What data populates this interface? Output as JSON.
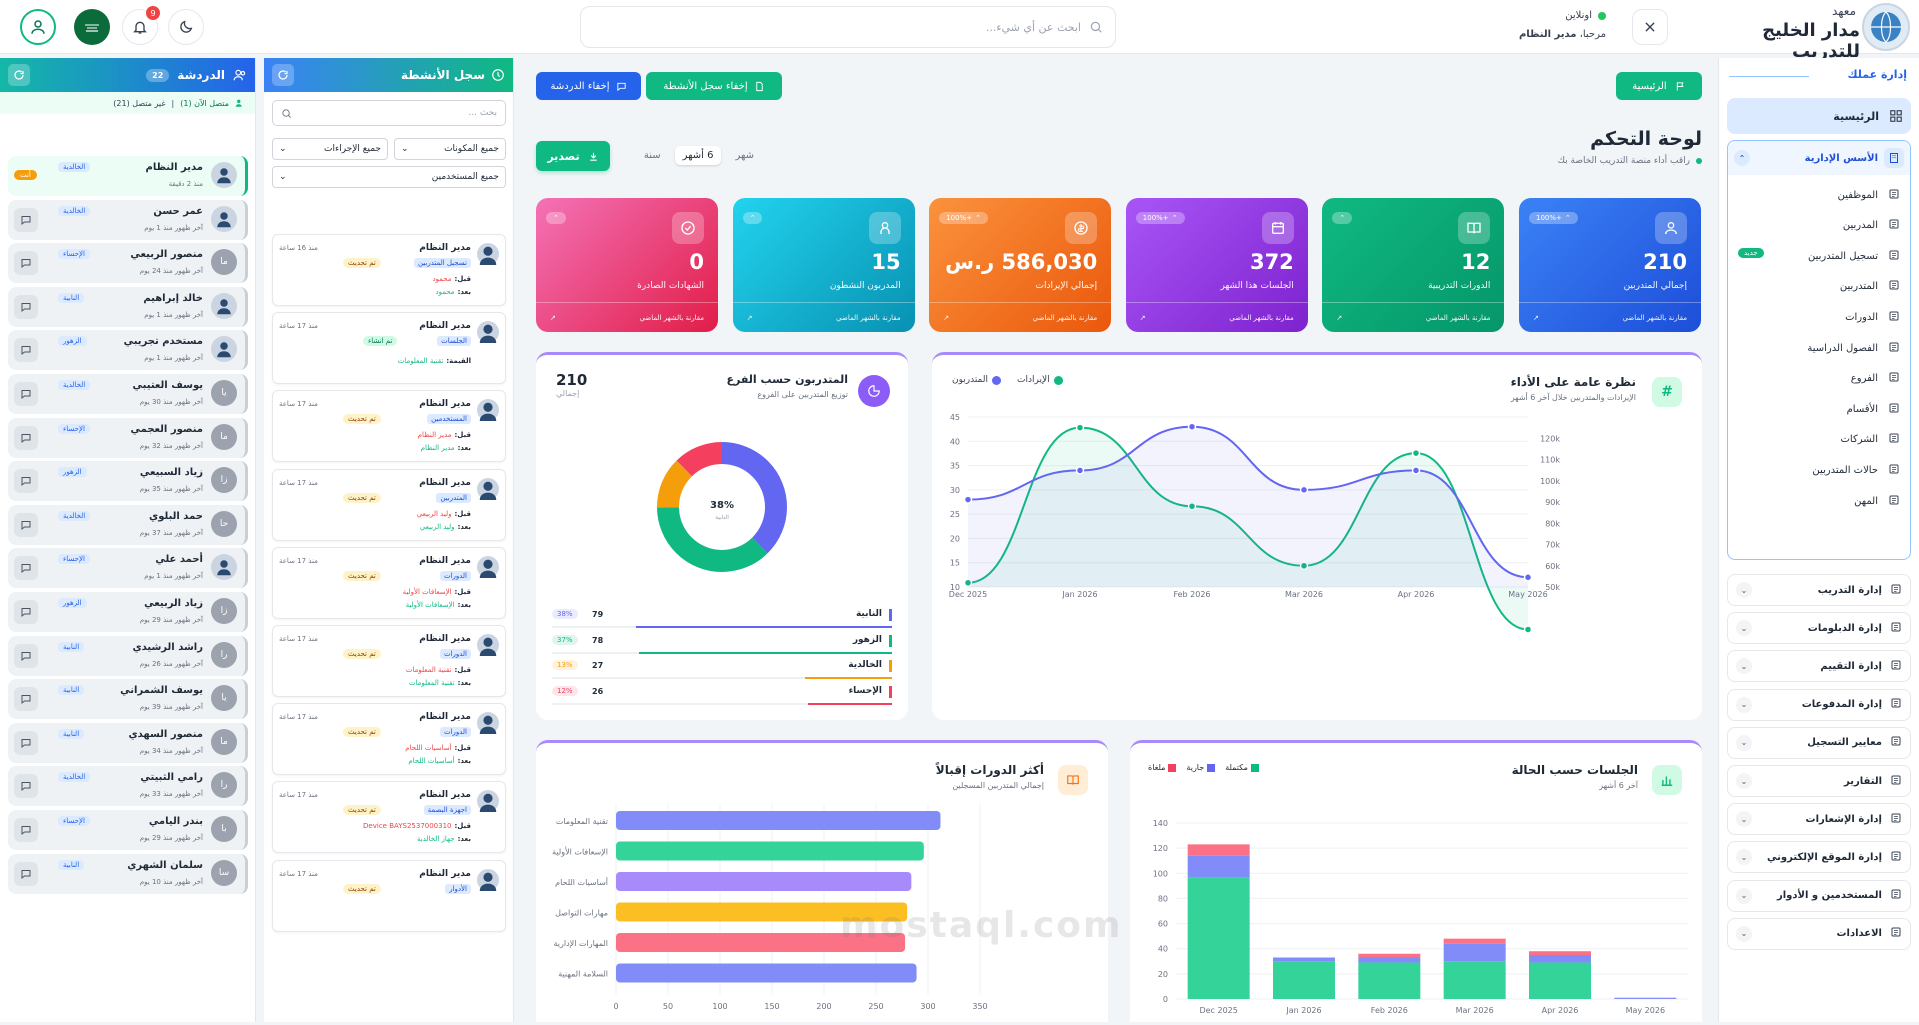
{
  "topbar": {
    "brand_line1": "معهد",
    "brand_line2": "مدار الخليج للتدريب",
    "status": "اونلاين",
    "greeting_prefix": "مرحبا،",
    "greeting_user": "مدير النظام",
    "search_placeholder": "ابحث عن أي شيء...",
    "notifications_count": "9"
  },
  "chat_panel": {
    "title": "الدردشة",
    "count": "22",
    "online": "متصل الآن (1)",
    "offline": "غير متصل (21)",
    "users": [
      {
        "name": "مدير النظام",
        "branch": "الخالدية",
        "time": "منذ 2 دقيقة",
        "initials": "",
        "tag": "أنت"
      },
      {
        "name": "عمر حسن",
        "branch": "الخالدية",
        "time": "آخر ظهور منذ 1 يوم",
        "initials": ""
      },
      {
        "name": "منصور الربيعي",
        "branch": "الإحساء",
        "time": "آخر ظهور منذ 24 يوم",
        "initials": "ما"
      },
      {
        "name": "خالد إبراهيم",
        "branch": "النابية",
        "time": "آخر ظهور منذ 1 يوم",
        "initials": ""
      },
      {
        "name": "مستخدم تجريبي",
        "branch": "الزهور",
        "time": "آخر ظهور منذ 1 يوم",
        "initials": ""
      },
      {
        "name": "يوسف العتيبي",
        "branch": "الخالدية",
        "time": "آخر ظهور منذ 30 يوم",
        "initials": "يا"
      },
      {
        "name": "منصور العجمي",
        "branch": "الإحساء",
        "time": "آخر ظهور منذ 32 يوم",
        "initials": "ما"
      },
      {
        "name": "زياد السبيعي",
        "branch": "الزهور",
        "time": "آخر ظهور منذ 35 يوم",
        "initials": "زا"
      },
      {
        "name": "حمد البلوي",
        "branch": "الخالدية",
        "time": "آخر ظهور منذ 37 يوم",
        "initials": "حا"
      },
      {
        "name": "أحمد علي",
        "branch": "الإحساء",
        "time": "آخر ظهور منذ 1 يوم",
        "initials": ""
      },
      {
        "name": "زياد الربيعي",
        "branch": "الزهور",
        "time": "آخر ظهور منذ 29 يوم",
        "initials": "زا"
      },
      {
        "name": "راشد الرشيدي",
        "branch": "النابية",
        "time": "آخر ظهور منذ 26 يوم",
        "initials": "را"
      },
      {
        "name": "يوسف الشمراني",
        "branch": "النابية",
        "time": "آخر ظهور منذ 39 يوم",
        "initials": "يا"
      },
      {
        "name": "منصور السهدي",
        "branch": "النابية",
        "time": "آخر ظهور منذ 34 يوم",
        "initials": "ما"
      },
      {
        "name": "رامي الثبيتي",
        "branch": "الخالدية",
        "time": "آخر ظهور منذ 33 يوم",
        "initials": "را"
      },
      {
        "name": "بندر اليامي",
        "branch": "الإحساء",
        "time": "آخر ظهور منذ 29 يوم",
        "initials": "با"
      },
      {
        "name": "سلمان الشهري",
        "branch": "النابية",
        "time": "آخر ظهور منذ 10 يوم",
        "initials": "سا"
      }
    ]
  },
  "activity_panel": {
    "title": "سجل الأنشطة",
    "search_placeholder": "بحث ...",
    "filter_components": "جميع المكونات",
    "filter_actions": "جميع الإجراءات",
    "filter_users": "جميع المستخدمين",
    "before_label": "قبل:",
    "after_label": "بعد:",
    "value_label": "القيمة:",
    "entries": [
      {
        "user": "مدير النظام",
        "time": "منذ 16 ساعة",
        "module": "تسجيل المتدربين",
        "action": "تم تحديث",
        "before": "محمود",
        "after": "محمود"
      },
      {
        "user": "مدير النظام",
        "time": "منذ 17 ساعة",
        "module": "الجلسات",
        "action": "تم انشاء",
        "value": "تقنية المعلومات"
      },
      {
        "user": "مدير النظام",
        "time": "منذ 17 ساعة",
        "module": "المستخدمين",
        "action": "تم تحديث",
        "before": "مدير النظام",
        "after": "مدير النظام"
      },
      {
        "user": "مدير النظام",
        "time": "منذ 17 ساعة",
        "module": "المتدربين",
        "action": "تم تحديث",
        "before": "وليد الربيعي",
        "after": "وليد الربيعي"
      },
      {
        "user": "مدير النظام",
        "time": "منذ 17 ساعة",
        "module": "الدورات",
        "action": "تم تحديث",
        "before": "الإسعافات الأولية",
        "after": "الإسعافات الأولية"
      },
      {
        "user": "مدير النظام",
        "time": "منذ 17 ساعة",
        "module": "الدورات",
        "action": "تم تحديث",
        "before": "تقنية المعلومات",
        "after": "تقنية المعلومات"
      },
      {
        "user": "مدير النظام",
        "time": "منذ 17 ساعة",
        "module": "الدورات",
        "action": "تم تحديث",
        "before": "أساسيات اللحام",
        "after": "أساسيات اللحام"
      },
      {
        "user": "مدير النظام",
        "time": "منذ 17 ساعة",
        "module": "اجهزة البصمة",
        "action": "تم تحديث",
        "before": "Device BAYS2537000310",
        "after": "جهاز الخالدية"
      },
      {
        "user": "مدير النظام",
        "time": "منذ 17 ساعة",
        "module": "الأدوار",
        "action": "تم تحديث"
      }
    ]
  },
  "main": {
    "hide_chat": "إخفاء الدردشة",
    "hide_activity": "إخفاء سجل الأنشطة",
    "home_button": "الرئيسية",
    "page_title": "لوحة التحكم",
    "page_subtitle": "راقب أداء منصة التدريب الخاصة بك",
    "export": "تصدير",
    "periods": [
      "شهر",
      "6 أشهر",
      "سنة"
    ],
    "kpis": [
      {
        "value": "210",
        "label": "إجمالي المتدربين",
        "badge": "100%+",
        "foot": "مقارنة بالشهر الماضي",
        "color": "#2563eb"
      },
      {
        "value": "12",
        "label": "الدورات التدريبية",
        "badge": "",
        "foot": "مقارنة بالشهر الماضي",
        "color": "#10b981"
      },
      {
        "value": "372",
        "label": "الجلسات هذا الشهر",
        "badge": "100%+",
        "foot": "مقارنة بالشهر الماضي",
        "color": "#9333ea"
      },
      {
        "value": "586,030 ر.س",
        "label": "إجمالي الإيرادات",
        "badge": "100%+",
        "foot": "مقارنة بالشهر الماضي",
        "color": "#f97316"
      },
      {
        "value": "15",
        "label": "المدربون النشطون",
        "badge": "",
        "foot": "مقارنة بالشهر الماضي",
        "color": "#06b6d4"
      },
      {
        "value": "0",
        "label": "الشهادات الصادرة",
        "badge": "",
        "foot": "مقارنة بالشهر الماضي",
        "color": "#ec4899"
      }
    ],
    "watermark": "mostaql.com"
  },
  "sidebar": {
    "section_title": "إدارة عملك",
    "home": "الرئيسية",
    "basics_title": "الأسس الإدارية",
    "new_badge": "جديد",
    "basics_items": [
      "الموظفين",
      "المدربين",
      "تسجيل المتدربين",
      "المتدربين",
      "الدورات",
      "الفصول الدراسية",
      "الفروع",
      "الأقسام",
      "الشركات",
      "حالات المتدربين",
      "المهن"
    ],
    "groups": [
      "إدارة التدريب",
      "إدارة الدبلومات",
      "إدارة التقييم",
      "إدارة المدفوعات",
      "معايير التسجيل",
      "التقارير",
      "إدارة الإشعارات",
      "إدارة الموقع الإلكتروني",
      "المستخدمين و الأدوار",
      "الاعدادات"
    ]
  },
  "chart_data": [
    {
      "type": "line",
      "title": "نظرة عامة على الأداء",
      "subtitle": "الإيرادات والمتدربين خلال آخر 6 أشهر",
      "x": [
        "Dec 2025",
        "Jan 2026",
        "Feb 2026",
        "Mar 2026",
        "Apr 2026",
        "May 2026"
      ],
      "series": [
        {
          "name": "الإيرادات",
          "axis": "right",
          "values": [
            42000,
            115000,
            78000,
            50000,
            103000,
            20000
          ],
          "color": "#10b981"
        },
        {
          "name": "المتدربون",
          "axis": "left",
          "values": [
            28,
            34,
            43,
            30,
            34,
            12
          ],
          "color": "#6366f1"
        }
      ],
      "yleft_ticks": [
        10,
        15,
        20,
        25,
        30,
        35,
        40,
        45
      ],
      "yright_ticks": [
        "50k",
        "60k",
        "70k",
        "80k",
        "90k",
        "100k",
        "110k",
        "120k"
      ],
      "legend": "top-left"
    },
    {
      "type": "pie",
      "title": "المتدربون حسب الفرع",
      "subtitle": "توزيع المتدربين على الفروع",
      "total": "210",
      "total_label": "إجمالي",
      "center": "38%",
      "center_label": "النابية",
      "slices": [
        {
          "name": "النابية",
          "value": 79,
          "pct": "38%",
          "color": "#6366f1"
        },
        {
          "name": "الزهور",
          "value": 78,
          "pct": "37%",
          "color": "#10b981"
        },
        {
          "name": "الخالدية",
          "value": 27,
          "pct": "13%",
          "color": "#f59e0b"
        },
        {
          "name": "الإحساء",
          "value": 26,
          "pct": "12%",
          "color": "#f43f5e"
        }
      ]
    },
    {
      "type": "bar",
      "orientation": "horizontal",
      "title": "أكثر الدورات إقبالاً",
      "subtitle": "إجمالي المتدربين المسجلين",
      "categories": [
        "تقنية المعلومات",
        "الإسعافات الأولية",
        "أساسيات اللحام",
        "مهارات التواصل",
        "المهارات الإدارية",
        "السلامة المهنية"
      ],
      "values": [
        312,
        296,
        284,
        280,
        278,
        289
      ],
      "colors": [
        "#818cf8",
        "#34d399",
        "#a78bfa",
        "#fbbf24",
        "#fb7185",
        "#818cf8"
      ],
      "xlim": [
        0,
        350
      ],
      "xticks": [
        0,
        50,
        100,
        150,
        200,
        250,
        300,
        350
      ]
    },
    {
      "type": "bar",
      "stacked": true,
      "title": "الجلسات حسب الحالة",
      "subtitle": "آخر 6 أشهر",
      "categories": [
        "Dec 2025",
        "Jan 2026",
        "Feb 2026",
        "Mar 2026",
        "Apr 2026",
        "May 2026"
      ],
      "series": [
        {
          "name": "مكتملة",
          "values": [
            97,
            30,
            29,
            30,
            29,
            0
          ],
          "color": "#34d399"
        },
        {
          "name": "جارية",
          "values": [
            17,
            3,
            4,
            14,
            6,
            1
          ],
          "color": "#818cf8"
        },
        {
          "name": "ملغاة",
          "values": [
            9,
            0,
            3,
            4,
            3,
            0
          ],
          "color": "#fb7185"
        }
      ],
      "ylim": [
        0,
        140
      ],
      "yticks": [
        0,
        20,
        40,
        60,
        80,
        100,
        120,
        140
      ]
    }
  ]
}
